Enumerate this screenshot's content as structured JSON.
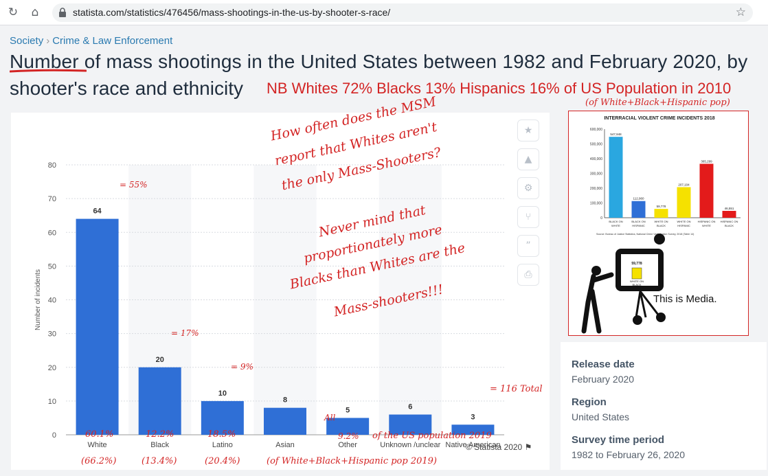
{
  "browser": {
    "url": "statista.com/statistics/476456/mass-shootings-in-the-us-by-shooter-s-race/"
  },
  "breadcrumb": {
    "item1": "Society",
    "item2": "Crime & Law Enforcement"
  },
  "page_title": {
    "line1": "Number of mass shootings in the United States between 1982 and February 2020, by",
    "line2": "shooter's race and ethnicity"
  },
  "annotations": {
    "nb_note": "NB Whites 72% Blacks 13% Hispanics 16% of US Population in 2010",
    "pop_note": "(of White+Black+Hispanic pop)",
    "msm_line1": "How often does the MSM",
    "msm_line2": "report that Whites aren't",
    "msm_line3": "the only Mass-Shooters?",
    "nm_line1": "Never mind that",
    "nm_line2": "proportionately more",
    "nm_line3": "Blacks than Whites are the",
    "nm_line4": "Mass-shooters!!!",
    "eq_white": "= 55%",
    "eq_black": "= 17%",
    "eq_latino": "= 9%",
    "total": "= 116 Total",
    "all_prefix": "All",
    "pct_white": "60.1%",
    "pct_black": "12.2%",
    "pct_latino": "18.5%",
    "pct_other": "9.2%",
    "us_pop_note": "of the US population 2019",
    "paren_white": "(66.2%)",
    "paren_black": "(13.4%)",
    "paren_latino": "(20.4%)",
    "paren_note": "(of White+Black+Hispanic pop 2019)"
  },
  "chart_data": {
    "type": "bar",
    "categories": [
      "White",
      "Black",
      "Latino",
      "Asian",
      "Other",
      "Unknown /unclear",
      "Native American"
    ],
    "values": [
      64,
      20,
      10,
      8,
      5,
      6,
      3
    ],
    "ylabel": "Number of incidents",
    "ylim": [
      0,
      80
    ],
    "yticks": [
      0,
      10,
      20,
      30,
      40,
      50,
      60,
      70,
      80
    ],
    "grid": true,
    "bar_color": "#2f6fd6"
  },
  "credit": "© Statista 2020",
  "inset": {
    "title": "INTERRACIAL VIOLENT CRIME INCIDENTS 2018",
    "source": "Source: Bureau of Justice Statistics, National Crime Victimization Survey, 2018 (Table 14)",
    "chart_data": {
      "type": "bar",
      "categories": [
        "BLACK ON WHITE",
        "BLACK ON HISPANIC",
        "WHITE ON BLACK",
        "WHITE ON HISPANIC",
        "HISPANIC ON WHITE",
        "HISPANIC ON BLACK"
      ],
      "values": [
        547948,
        112960,
        59778,
        207104,
        365299,
        46551
      ],
      "labels": [
        "547,948",
        "112,960",
        "59,778",
        "207,104",
        "365,299",
        "46,551"
      ],
      "yticks_labels": [
        "0",
        "100,000",
        "200,000",
        "300,000",
        "400,000",
        "500,000",
        "600,000"
      ],
      "ylim": [
        0,
        600000
      ],
      "colors": [
        "#2aa7e0",
        "#2f6fd6",
        "#f5e100",
        "#f5e100",
        "#e31b1b",
        "#e31b1b"
      ]
    },
    "tv_value": "59,778",
    "tv_label_1": "WHITE ON",
    "tv_label_2": "BLACK",
    "caption": "This is Media."
  },
  "info": {
    "release_label": "Release date",
    "release_value": "February 2020",
    "region_label": "Region",
    "region_value": "United States",
    "period_label": "Survey time period",
    "period_value": "1982 to February 26, 2020"
  },
  "side_buttons": [
    "star-icon",
    "bell-icon",
    "gear-icon",
    "share-icon",
    "quote-icon",
    "print-icon"
  ]
}
